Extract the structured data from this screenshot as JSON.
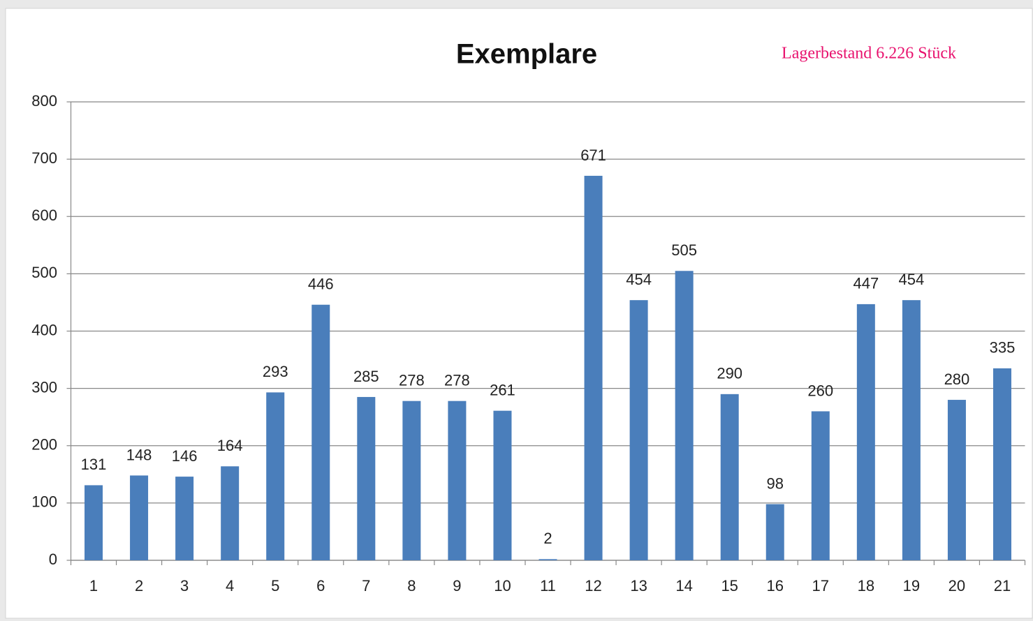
{
  "chart_data": {
    "type": "bar",
    "title": "Exemplare",
    "annotation": "Lagerbestand 6.226 Stück",
    "categories": [
      "1",
      "2",
      "3",
      "4",
      "5",
      "6",
      "7",
      "8",
      "9",
      "10",
      "11",
      "12",
      "13",
      "14",
      "15",
      "16",
      "17",
      "18",
      "19",
      "20",
      "21"
    ],
    "values": [
      131,
      148,
      146,
      164,
      293,
      446,
      285,
      278,
      278,
      261,
      2,
      671,
      454,
      505,
      290,
      98,
      260,
      447,
      454,
      280,
      335
    ],
    "color": "#4a7ebb",
    "ylim": [
      0,
      800
    ],
    "yticks": [
      0,
      100,
      200,
      300,
      400,
      500,
      600,
      700,
      800
    ],
    "grid": true
  }
}
